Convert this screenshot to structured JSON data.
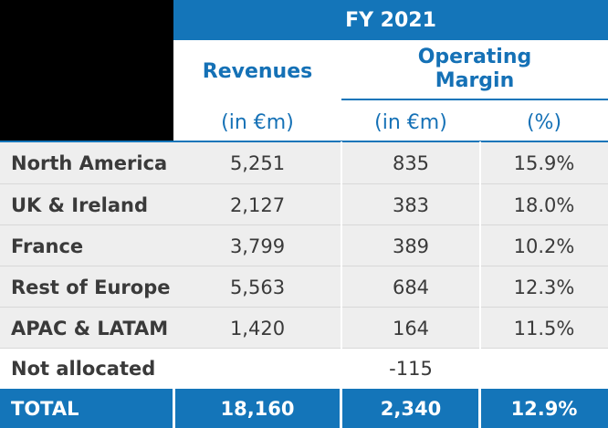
{
  "header": {
    "period": "FY 2021",
    "revenues_title": "Revenues",
    "operating_margin_title_line1": "Operating",
    "operating_margin_title_line2": "Margin",
    "units": {
      "revenues": "(in €m)",
      "operating_margin": "(in €m)",
      "operating_margin_pct": "(%)"
    }
  },
  "rows": [
    {
      "label": "North America",
      "revenues": "5,251",
      "operating_margin": "835",
      "margin_pct": "15.9%"
    },
    {
      "label": "UK & Ireland",
      "revenues": "2,127",
      "operating_margin": "383",
      "margin_pct": "18.0%"
    },
    {
      "label": "France",
      "revenues": "3,799",
      "operating_margin": "389",
      "margin_pct": "10.2%"
    },
    {
      "label": "Rest of Europe",
      "revenues": "5,563",
      "operating_margin": "684",
      "margin_pct": "12.3%"
    },
    {
      "label": "APAC & LATAM",
      "revenues": "1,420",
      "operating_margin": "164",
      "margin_pct": "11.5%"
    },
    {
      "label": "Not allocated",
      "revenues": "",
      "operating_margin": "-115",
      "margin_pct": ""
    }
  ],
  "total": {
    "label": "TOTAL",
    "revenues": "18,160",
    "operating_margin": "2,340",
    "margin_pct": "12.9%"
  },
  "colors": {
    "header_band": "#1475b9",
    "header_text": "#1571b6",
    "row_shade": "#eeeeee",
    "total_band": "#1475b9"
  }
}
